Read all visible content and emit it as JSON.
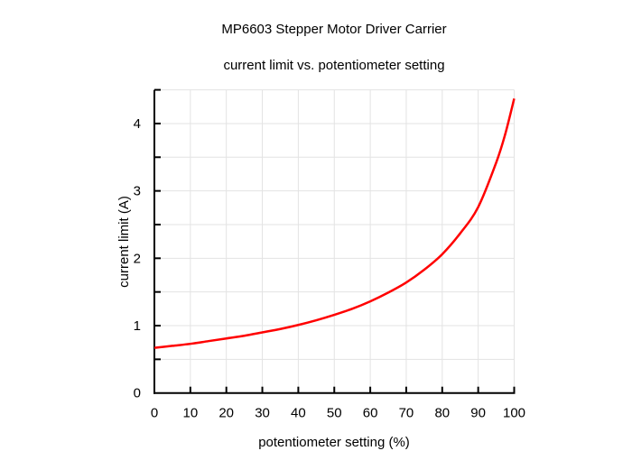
{
  "chart_data": {
    "type": "line",
    "title": "MP6603 Stepper Motor Driver Carrier",
    "subtitle": "current limit vs. potentiometer setting",
    "xlabel": "potentiometer setting (%)",
    "ylabel": "current limit (A)",
    "xlim": [
      0,
      100
    ],
    "ylim": [
      0,
      4.5
    ],
    "xticks": [
      "0",
      "10",
      "20",
      "30",
      "40",
      "50",
      "60",
      "70",
      "80",
      "90",
      "100"
    ],
    "yticks": [
      "0",
      "1",
      "2",
      "3",
      "4"
    ],
    "grid": true,
    "series": [
      {
        "name": "current limit",
        "color": "#ff0000",
        "x": [
          0,
          5,
          10,
          15,
          20,
          25,
          30,
          35,
          40,
          45,
          50,
          55,
          60,
          65,
          70,
          75,
          80,
          85,
          90,
          95,
          97.5,
          100
        ],
        "y": [
          0.67,
          0.7,
          0.73,
          0.77,
          0.81,
          0.85,
          0.9,
          0.95,
          1.01,
          1.08,
          1.16,
          1.25,
          1.36,
          1.49,
          1.64,
          1.83,
          2.06,
          2.37,
          2.76,
          3.42,
          3.84,
          4.37
        ]
      }
    ]
  }
}
